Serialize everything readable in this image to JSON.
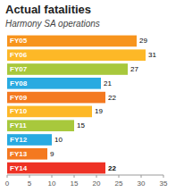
{
  "chart_data": {
    "type": "bar",
    "orientation": "horizontal",
    "title": "Actual fatalities",
    "subtitle": "Harmony SA operations",
    "categories": [
      "FY05",
      "FY06",
      "FY07",
      "FY08",
      "FY09",
      "FY10",
      "FY11",
      "FY12",
      "FY13",
      "FY14"
    ],
    "values": [
      29,
      31,
      27,
      21,
      22,
      19,
      15,
      10,
      9,
      22
    ],
    "colors": [
      "#F7941D",
      "#FDB827",
      "#A8C83C",
      "#29AAE1",
      "#F47920",
      "#FDB827",
      "#A8C83C",
      "#29AAE1",
      "#F47920",
      "#EE3124"
    ],
    "xlim": [
      0,
      35
    ],
    "xticks": [
      0,
      5,
      10,
      15,
      20,
      25,
      30,
      35
    ],
    "data_labels": true
  }
}
